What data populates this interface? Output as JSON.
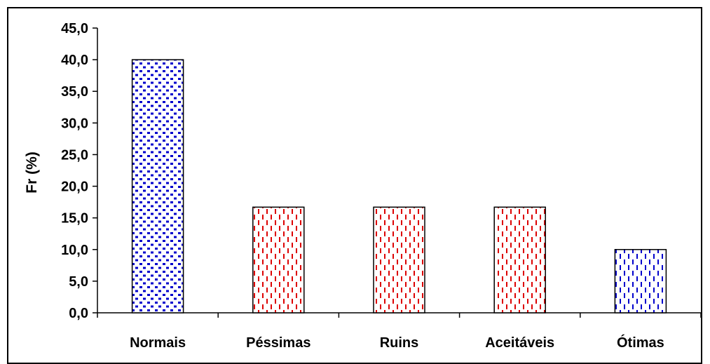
{
  "chart_data": {
    "type": "bar",
    "title": "",
    "xlabel": "",
    "ylabel": "Fr (%)",
    "ylim": [
      0,
      45
    ],
    "ytick_values": [
      0,
      5,
      10,
      15,
      20,
      25,
      30,
      35,
      40,
      45
    ],
    "ytick_labels": [
      "0,0",
      "5,0",
      "10,0",
      "15,0",
      "20,0",
      "25,0",
      "30,0",
      "35,0",
      "40,0",
      "45,0"
    ],
    "categories": [
      "Normais",
      "Péssimas",
      "Ruins",
      "Aceitáveis",
      "Ótimas"
    ],
    "values": [
      40.0,
      16.7,
      16.7,
      16.7,
      10.0
    ],
    "bar_styles": [
      {
        "pattern": "blue-dots",
        "color": "#0000cc"
      },
      {
        "pattern": "red-dashes",
        "color": "#dd0000"
      },
      {
        "pattern": "red-dashes",
        "color": "#dd0000"
      },
      {
        "pattern": "red-dashes",
        "color": "#dd0000"
      },
      {
        "pattern": "blue-dashes",
        "color": "#0000cc"
      }
    ],
    "grid": false,
    "legend": "none"
  }
}
